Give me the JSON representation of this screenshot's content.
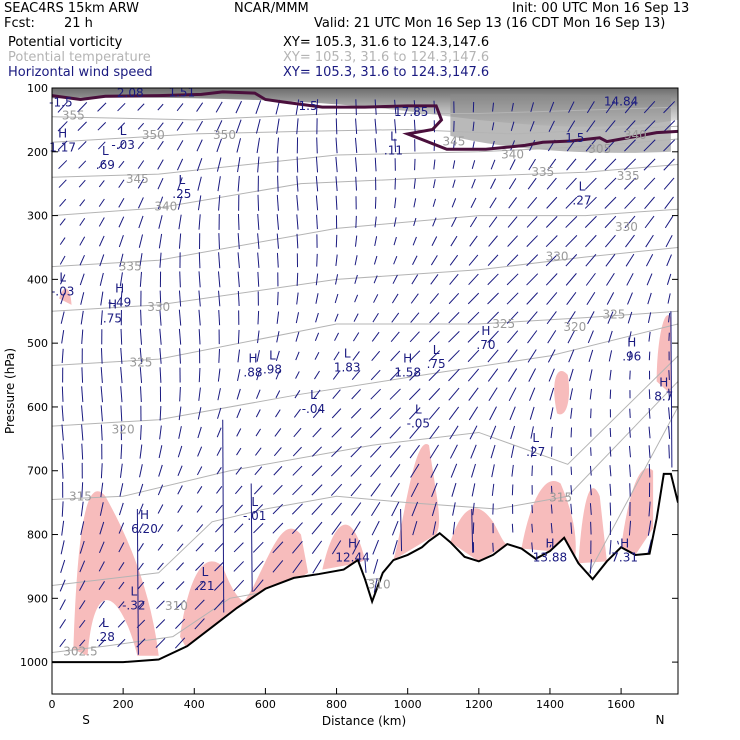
{
  "header": {
    "model": "SEAC4RS 15km ARW",
    "center": "NCAR/MMM",
    "init": "Init: 00 UTC Mon 16 Sep 13",
    "fcst_label": "Fcst:",
    "fcst_value": "21 h",
    "valid": "Valid: 21 UTC Mon 16 Sep 13 (16 CDT Mon 16 Sep 13)",
    "fields": [
      {
        "name": "Potential vorticity",
        "xy": "XY= 105.3, 31.6 to 124.3,147.6",
        "color": "#000000"
      },
      {
        "name": "Potential temperature",
        "xy": "XY= 105.3, 31.6 to 124.3,147.6",
        "color": "#b4b4b4"
      },
      {
        "name": "Horizontal wind speed",
        "xy": "XY= 105.3, 31.6 to 124.3,147.6",
        "color": "#1a1a80"
      }
    ]
  },
  "chart_data": {
    "type": "cross-section",
    "xlabel": "Distance (km)",
    "ylabel": "Pressure (hPa)",
    "xlim": [
      0,
      1760
    ],
    "ylim": [
      1050,
      100
    ],
    "x_ticks": [
      "0",
      "200",
      "400",
      "600",
      "800",
      "1000",
      "1200",
      "1400",
      "1600"
    ],
    "y_ticks": [
      "100",
      "200",
      "300",
      "400",
      "500",
      "600",
      "700",
      "800",
      "900",
      "1000"
    ],
    "x_end_labels": {
      "left": "S",
      "right": "N"
    },
    "colors": {
      "terrain": "#000000",
      "pv_line": "#4a0f3c",
      "theta": "#b4b4b4",
      "wind": "#1a1a80",
      "shade": "#f7b8b8"
    },
    "terrain": [
      [
        0,
        1000
      ],
      [
        100,
        1000
      ],
      [
        200,
        1000
      ],
      [
        300,
        996
      ],
      [
        380,
        975
      ],
      [
        450,
        945
      ],
      [
        520,
        915
      ],
      [
        600,
        885
      ],
      [
        680,
        868
      ],
      [
        750,
        862
      ],
      [
        820,
        855
      ],
      [
        860,
        840
      ],
      [
        880,
        870
      ],
      [
        900,
        905
      ],
      [
        930,
        860
      ],
      [
        960,
        840
      ],
      [
        1000,
        832
      ],
      [
        1040,
        820
      ],
      [
        1060,
        810
      ],
      [
        1090,
        798
      ],
      [
        1120,
        812
      ],
      [
        1160,
        835
      ],
      [
        1200,
        842
      ],
      [
        1240,
        832
      ],
      [
        1280,
        815
      ],
      [
        1320,
        822
      ],
      [
        1360,
        838
      ],
      [
        1400,
        826
      ],
      [
        1440,
        805
      ],
      [
        1480,
        845
      ],
      [
        1520,
        870
      ],
      [
        1560,
        842
      ],
      [
        1600,
        820
      ],
      [
        1640,
        832
      ],
      [
        1680,
        830
      ],
      [
        1700,
        775
      ],
      [
        1720,
        705
      ],
      [
        1740,
        705
      ],
      [
        1760,
        750
      ]
    ],
    "pv_line": [
      [
        0,
        112
      ],
      [
        80,
        118
      ],
      [
        150,
        113
      ],
      [
        300,
        112
      ],
      [
        420,
        110
      ],
      [
        480,
        106
      ],
      [
        570,
        108
      ],
      [
        600,
        118
      ],
      [
        650,
        122
      ],
      [
        760,
        130
      ],
      [
        880,
        130
      ],
      [
        1000,
        128
      ],
      [
        1080,
        128
      ],
      [
        1095,
        150
      ],
      [
        1070,
        165
      ],
      [
        1000,
        172
      ],
      [
        1110,
        196
      ],
      [
        1220,
        196
      ],
      [
        1330,
        190
      ],
      [
        1380,
        185
      ],
      [
        1460,
        183
      ],
      [
        1540,
        178
      ],
      [
        1560,
        184
      ],
      [
        1640,
        176
      ],
      [
        1700,
        170
      ],
      [
        1760,
        168
      ]
    ],
    "theta_labels": [
      {
        "text": "355",
        "x": 60,
        "y": 143
      },
      {
        "text": "350",
        "x": 285,
        "y": 174
      },
      {
        "text": "350",
        "x": 485,
        "y": 174
      },
      {
        "text": "345",
        "x": 240,
        "y": 243
      },
      {
        "text": "345",
        "x": 1130,
        "y": 184
      },
      {
        "text": "340",
        "x": 320,
        "y": 286
      },
      {
        "text": "340",
        "x": 1295,
        "y": 204
      },
      {
        "text": "335",
        "x": 220,
        "y": 380
      },
      {
        "text": "335",
        "x": 1380,
        "y": 232
      },
      {
        "text": "330",
        "x": 300,
        "y": 443
      },
      {
        "text": "330",
        "x": 1420,
        "y": 364
      },
      {
        "text": "325",
        "x": 250,
        "y": 530
      },
      {
        "text": "325",
        "x": 1270,
        "y": 470
      },
      {
        "text": "320",
        "x": 200,
        "y": 635
      },
      {
        "text": "315",
        "x": 80,
        "y": 740
      },
      {
        "text": "310",
        "x": 350,
        "y": 912
      },
      {
        "text": "310",
        "x": 920,
        "y": 878
      },
      {
        "text": "305",
        "x": 1540,
        "y": 196
      },
      {
        "text": "340",
        "x": 1640,
        "y": 174
      },
      {
        "text": "335",
        "x": 1620,
        "y": 238
      },
      {
        "text": "330",
        "x": 1615,
        "y": 318
      },
      {
        "text": "325",
        "x": 1580,
        "y": 455
      },
      {
        "text": "320",
        "x": 1470,
        "y": 475
      },
      {
        "text": "315",
        "x": 1430,
        "y": 742
      },
      {
        "text": "302.5",
        "x": 80,
        "y": 983
      }
    ],
    "pv_labels": [
      {
        "text": "-1.5",
        "x": 25,
        "y": 123
      },
      {
        "text": "2.08",
        "x": 220,
        "y": 108
      },
      {
        "text": "1.51",
        "x": 365,
        "y": 107
      },
      {
        "text": "1.5",
        "x": 720,
        "y": 128
      },
      {
        "text": "1.5",
        "x": 1470,
        "y": 178
      },
      {
        "text": "17.85",
        "x": 1010,
        "y": 138
      },
      {
        "text": "14.84",
        "x": 1600,
        "y": 121
      }
    ],
    "hl_labels": [
      {
        "c": "H",
        "v": "1.17",
        "x": 30,
        "y": 182
      },
      {
        "c": "L",
        "v": "-.03",
        "x": 200,
        "y": 178
      },
      {
        "c": "L",
        "v": ".69",
        "x": 150,
        "y": 210
      },
      {
        "c": "L",
        "v": ".25",
        "x": 365,
        "y": 255
      },
      {
        "c": "L",
        "v": ".11",
        "x": 960,
        "y": 187
      },
      {
        "c": "L",
        "v": ".27",
        "x": 1490,
        "y": 265
      },
      {
        "c": "L",
        "v": "-.03",
        "x": 30,
        "y": 408
      },
      {
        "c": "H",
        "v": "-.49",
        "x": 190,
        "y": 425
      },
      {
        "c": "H",
        "v": ".75",
        "x": 170,
        "y": 450
      },
      {
        "c": "H",
        "v": ".88",
        "x": 565,
        "y": 535
      },
      {
        "c": "L",
        "v": ".98",
        "x": 620,
        "y": 530
      },
      {
        "c": "L",
        "v": "1.83",
        "x": 830,
        "y": 527
      },
      {
        "c": "H",
        "v": "1.58",
        "x": 1000,
        "y": 535
      },
      {
        "c": "L",
        "v": ".75",
        "x": 1080,
        "y": 522
      },
      {
        "c": "H",
        "v": ".70",
        "x": 1220,
        "y": 492
      },
      {
        "c": "H",
        "v": ".96",
        "x": 1630,
        "y": 510
      },
      {
        "c": "L",
        "v": "-.04",
        "x": 735,
        "y": 592
      },
      {
        "c": "L",
        "v": "-.05",
        "x": 1030,
        "y": 615
      },
      {
        "c": "L",
        "v": ".27",
        "x": 1360,
        "y": 660
      },
      {
        "c": "H",
        "v": "8.7",
        "x": 1720,
        "y": 573
      },
      {
        "c": "H",
        "v": "6.20",
        "x": 260,
        "y": 780
      },
      {
        "c": "L",
        "v": "-.01",
        "x": 570,
        "y": 760
      },
      {
        "c": "H",
        "v": "12.44",
        "x": 845,
        "y": 825
      },
      {
        "c": "L",
        "v": ".21",
        "x": 430,
        "y": 870
      },
      {
        "c": "L",
        "v": "-.32",
        "x": 230,
        "y": 900
      },
      {
        "c": "L",
        "v": ".28",
        "x": 150,
        "y": 950
      },
      {
        "c": "H",
        "v": "13.88",
        "x": 1400,
        "y": 825
      },
      {
        "c": "H",
        "v": "7.31",
        "x": 1610,
        "y": 825
      }
    ]
  }
}
